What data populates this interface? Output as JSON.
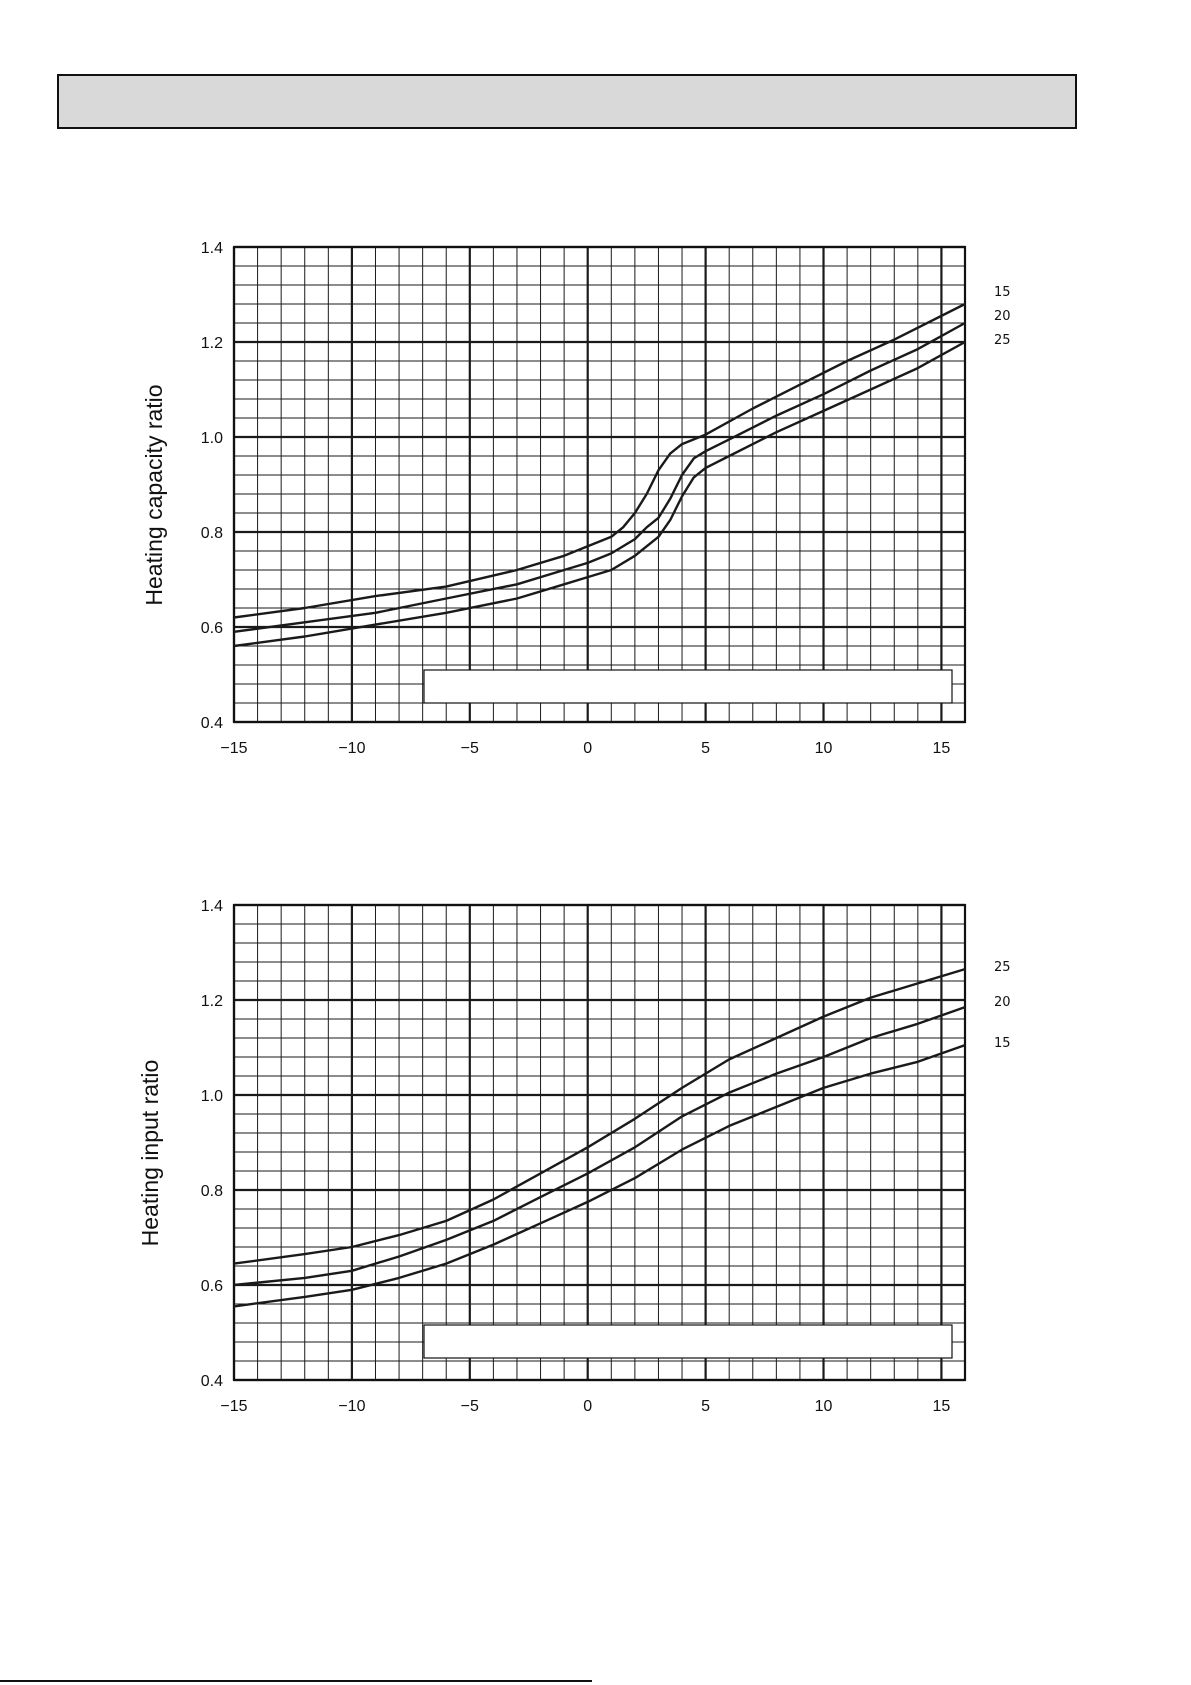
{
  "chart_data": [
    {
      "type": "line",
      "ylabel": "Heating capacity ratio",
      "xlim": [
        -15,
        16
      ],
      "ylim": [
        0.4,
        1.4
      ],
      "x_ticks": [
        "−15",
        "−10",
        "−5",
        "0",
        "5",
        "10",
        "15"
      ],
      "y_ticks": [
        "1.4",
        "1.2",
        "1.0",
        "0.8",
        "0.6",
        "0.4"
      ],
      "grid": true,
      "series": [
        {
          "name": "15",
          "x": [
            -15,
            -12,
            -9,
            -6,
            -3,
            -1,
            0,
            1,
            1.5,
            2,
            2.5,
            3,
            3.5,
            4,
            5,
            7,
            9,
            11,
            13,
            16
          ],
          "y": [
            0.62,
            0.64,
            0.665,
            0.685,
            0.72,
            0.75,
            0.77,
            0.79,
            0.81,
            0.84,
            0.88,
            0.93,
            0.965,
            0.985,
            1.005,
            1.06,
            1.11,
            1.16,
            1.205,
            1.28
          ]
        },
        {
          "name": "20",
          "x": [
            -15,
            -12,
            -9,
            -6,
            -3,
            -1,
            0,
            1,
            2,
            2.5,
            3,
            3.5,
            4,
            4.5,
            5,
            6,
            8,
            10,
            12,
            14,
            16
          ],
          "y": [
            0.59,
            0.61,
            0.63,
            0.66,
            0.69,
            0.72,
            0.735,
            0.755,
            0.785,
            0.81,
            0.83,
            0.87,
            0.92,
            0.955,
            0.97,
            0.995,
            1.045,
            1.09,
            1.14,
            1.185,
            1.24
          ]
        },
        {
          "name": "25",
          "x": [
            -15,
            -12,
            -9,
            -6,
            -3,
            -1,
            0,
            1,
            2,
            3,
            3.5,
            4,
            4.5,
            5,
            6,
            8,
            10,
            12,
            14,
            16
          ],
          "y": [
            0.56,
            0.58,
            0.605,
            0.63,
            0.66,
            0.69,
            0.705,
            0.72,
            0.75,
            0.79,
            0.825,
            0.875,
            0.915,
            0.935,
            0.96,
            1.01,
            1.055,
            1.1,
            1.145,
            1.2
          ]
        }
      ]
    },
    {
      "type": "line",
      "ylabel": "Heating input ratio",
      "xlim": [
        -15,
        16
      ],
      "ylim": [
        0.4,
        1.4
      ],
      "x_ticks": [
        "−15",
        "−10",
        "−5",
        "0",
        "5",
        "10",
        "15"
      ],
      "y_ticks": [
        "1.4",
        "1.2",
        "1.0",
        "0.8",
        "0.6",
        "0.4"
      ],
      "grid": true,
      "series": [
        {
          "name": "25",
          "x": [
            -15,
            -12,
            -10,
            -8,
            -6,
            -4,
            -2,
            0,
            2,
            4,
            6,
            8,
            10,
            12,
            14,
            16
          ],
          "y": [
            0.645,
            0.665,
            0.68,
            0.705,
            0.735,
            0.78,
            0.835,
            0.89,
            0.95,
            1.015,
            1.075,
            1.12,
            1.165,
            1.205,
            1.235,
            1.265
          ]
        },
        {
          "name": "20",
          "x": [
            -15,
            -12,
            -10,
            -8,
            -6,
            -4,
            -2,
            0,
            2,
            4,
            6,
            8,
            10,
            12,
            14,
            16
          ],
          "y": [
            0.6,
            0.615,
            0.63,
            0.66,
            0.695,
            0.735,
            0.785,
            0.835,
            0.89,
            0.955,
            1.005,
            1.045,
            1.08,
            1.12,
            1.15,
            1.185
          ]
        },
        {
          "name": "15",
          "x": [
            -15,
            -12,
            -10,
            -8,
            -6,
            -4,
            -2,
            0,
            2,
            4,
            6,
            8,
            10,
            12,
            14,
            16
          ],
          "y": [
            0.555,
            0.575,
            0.59,
            0.615,
            0.645,
            0.685,
            0.73,
            0.775,
            0.825,
            0.885,
            0.935,
            0.975,
            1.015,
            1.045,
            1.07,
            1.105
          ]
        }
      ]
    }
  ]
}
